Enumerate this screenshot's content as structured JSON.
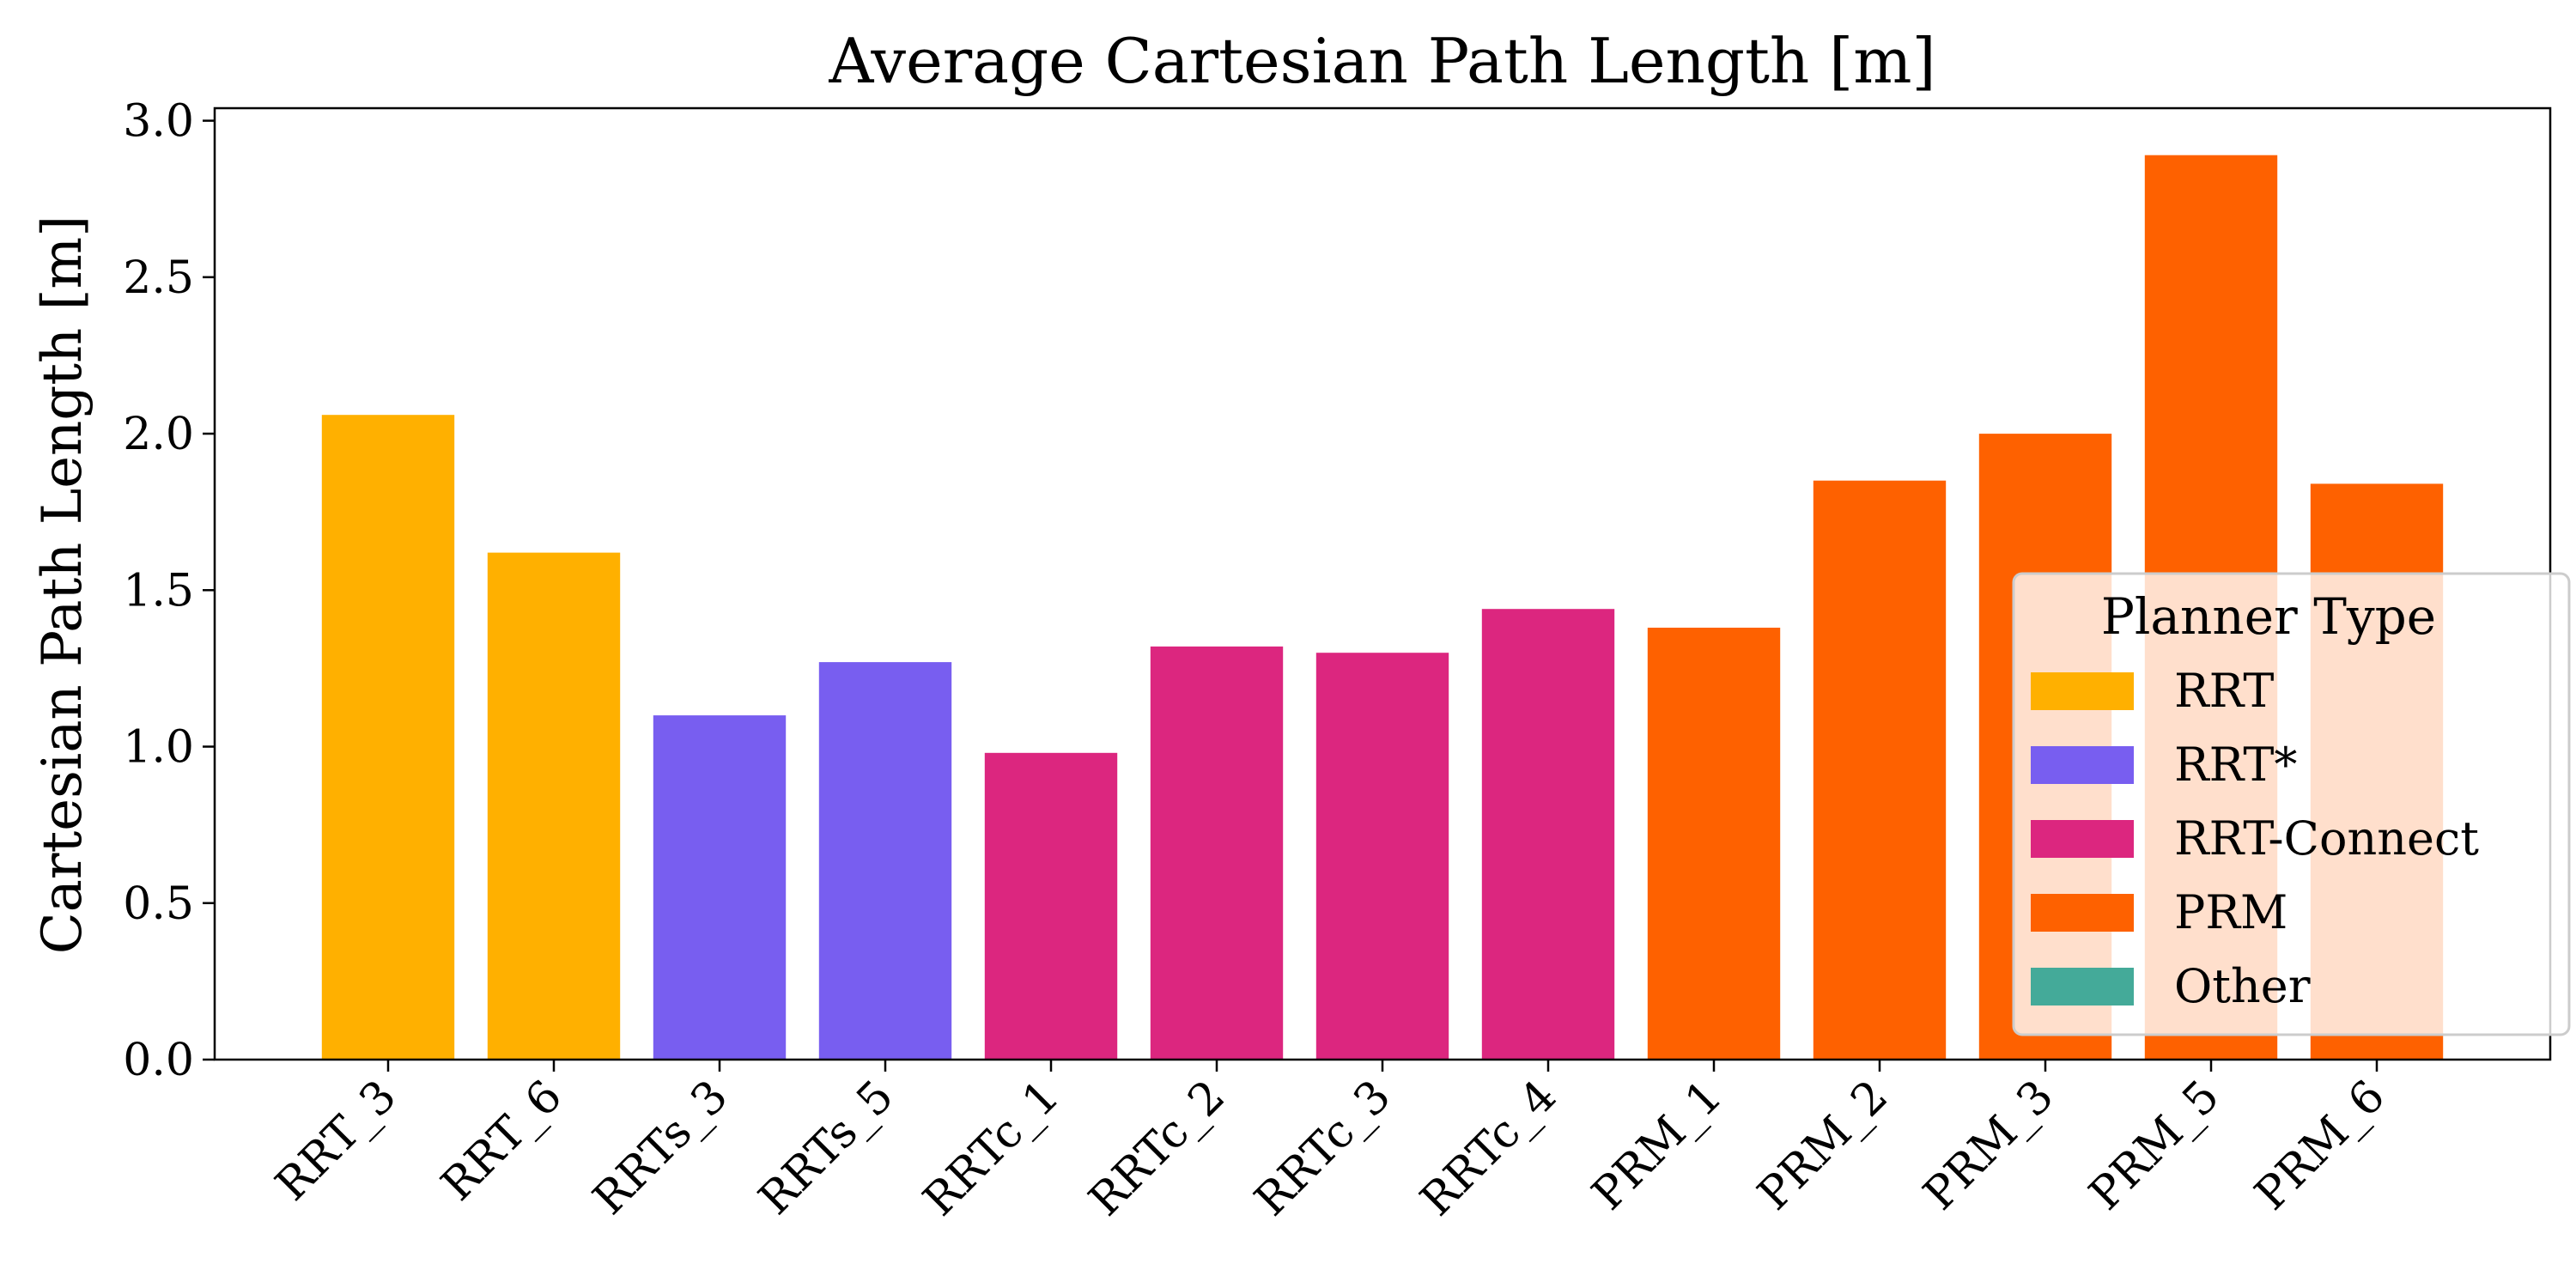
{
  "chart_data": {
    "type": "bar",
    "title": "Average Cartesian Path Length [m]",
    "xlabel": "",
    "ylabel": "Cartesian Path Length [m]",
    "ylim": [
      0,
      3.04
    ],
    "yticks": [
      "0.0",
      "0.5",
      "1.0",
      "1.5",
      "2.0",
      "2.5",
      "3.0"
    ],
    "categories": [
      "RRT_3",
      "RRT_6",
      "RRTs_3",
      "RRTs_5",
      "RRTc_1",
      "RRTc_2",
      "RRTc_3",
      "RRTc_4",
      "PRM_1",
      "PRM_2",
      "PRM_3",
      "PRM_5",
      "PRM_6"
    ],
    "values": [
      2.06,
      1.62,
      1.1,
      1.27,
      0.98,
      1.32,
      1.3,
      1.44,
      1.38,
      1.85,
      2.0,
      2.89,
      1.84
    ],
    "groups": [
      "RRT",
      "RRT",
      "RRT*",
      "RRT*",
      "RRT-Connect",
      "RRT-Connect",
      "RRT-Connect",
      "RRT-Connect",
      "PRM",
      "PRM",
      "PRM",
      "PRM",
      "PRM"
    ],
    "legend": {
      "title": "Planner Type",
      "position": "lower-right",
      "entries": [
        {
          "label": "RRT",
          "color": "#FFB000"
        },
        {
          "label": "RRT*",
          "color": "#785EF0"
        },
        {
          "label": "RRT-Connect",
          "color": "#DC267F"
        },
        {
          "label": "PRM",
          "color": "#FE6100"
        },
        {
          "label": "Other",
          "color": "#44AA99"
        }
      ]
    },
    "grid": false
  }
}
